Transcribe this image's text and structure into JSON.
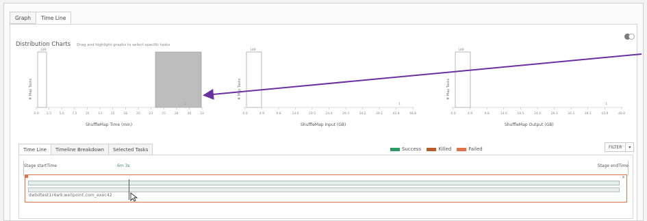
{
  "tabs": [
    {
      "label": "Graph"
    },
    {
      "label": "Time Line"
    }
  ],
  "distribution": {
    "title": "Distribution Charts",
    "hint": "Drag and highlight graphs to select specific tasks"
  },
  "charts": [
    {
      "ylabel": "# Map Tasks",
      "ymax_label": "189",
      "xlabel": "ShuffleMap Time (min)",
      "ticks": [
        "0.0",
        "2.5",
        "5.0",
        "7.5",
        "10",
        "13",
        "15",
        "18",
        "20",
        "23",
        "25",
        "28",
        "30",
        "33"
      ],
      "bar_label": "1"
    },
    {
      "ylabel": "# Map Tasks",
      "ymax_label": "189",
      "xlabel": "ShuffleMap Input (GB)",
      "ticks": [
        "0.0",
        "4.9",
        "9.8",
        "14.6",
        "19.5",
        "24.4",
        "29.3",
        "34.2",
        "39.1",
        "43.9",
        "48.8"
      ],
      "bar_label": "1"
    },
    {
      "ylabel": "# Map Tasks",
      "ymax_label": "189",
      "xlabel": "ShuffleMap Output (GB)",
      "ticks": [
        "0.0",
        "4.9",
        "9.8",
        "14.6",
        "19.5",
        "24.4",
        "29.3",
        "34.2",
        "39.1",
        "43.9",
        "48.8"
      ],
      "bar_label": "1"
    }
  ],
  "bottom_tabs": [
    {
      "label": "Time Line"
    },
    {
      "label": "Timeline Breakdown"
    },
    {
      "label": "Selected Tasks"
    }
  ],
  "legend": [
    {
      "label": "Success",
      "color": "#2e9a63"
    },
    {
      "label": "Killed",
      "color": "#b85c2a"
    },
    {
      "label": "Failed",
      "color": "#e2704a"
    }
  ],
  "filter": {
    "label": "FILTER",
    "dropdown": "▾"
  },
  "timeline": {
    "stage_start": "Stage startTime",
    "time_mark": "6m 3s",
    "stage_end": "Stage endTime",
    "host": "dwbdtest1r4w9.wellpoint.com_exec42",
    "close": "✕"
  },
  "annotation": {
    "arrow_color": "#6a2fa0"
  },
  "colors": {
    "highlight_fill": "#bdbdbd",
    "failed_outline": "#e2704a",
    "time_mark": "#4b8a7a"
  }
}
